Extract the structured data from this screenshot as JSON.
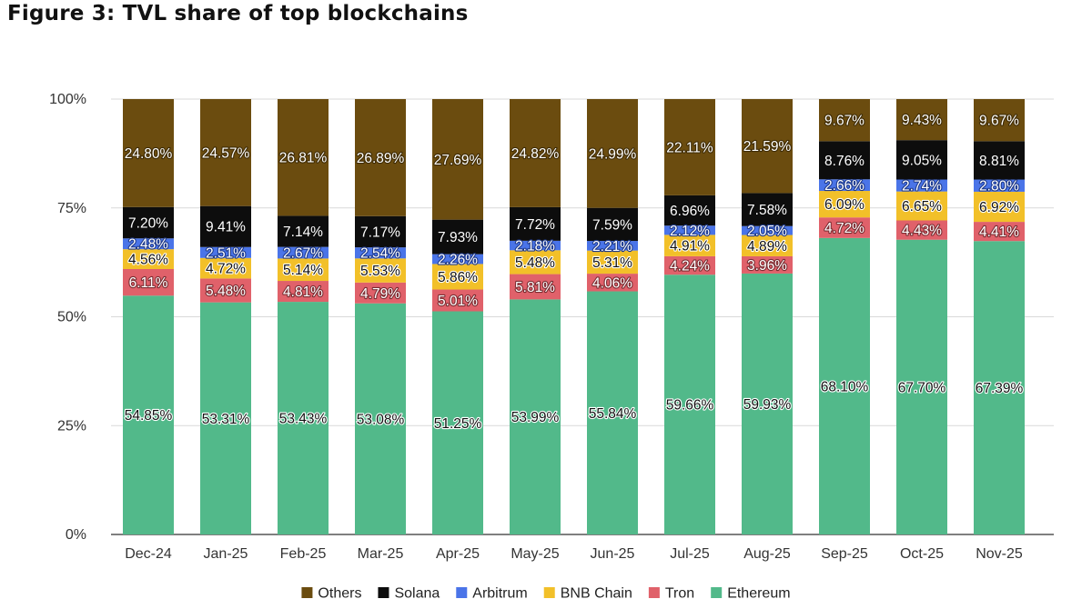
{
  "chart_data": {
    "type": "stacked-bar",
    "title": "Figure 3: TVL share of top blockchains",
    "xlabel": "",
    "ylabel": "",
    "ylim": [
      0,
      100
    ],
    "yticks": [
      "0%",
      "25%",
      "50%",
      "75%",
      "100%"
    ],
    "grid": true,
    "legend_position": "bottom",
    "categories": [
      "Dec-24",
      "Jan-25",
      "Feb-25",
      "Mar-25",
      "Apr-25",
      "May-25",
      "Jun-25",
      "Jul-25",
      "Aug-25",
      "Sep-25",
      "Oct-25",
      "Nov-25"
    ],
    "series": [
      {
        "name": "Ethereum",
        "color": "#52b98a",
        "label_color": "#111111",
        "halo": "#ffffff",
        "values": [
          54.85,
          53.31,
          53.43,
          53.08,
          51.25,
          53.99,
          55.84,
          59.66,
          59.93,
          68.1,
          67.7,
          67.39
        ]
      },
      {
        "name": "Tron",
        "color": "#e0616a",
        "label_color": "#ffffff",
        "halo": "#7a2d32",
        "values": [
          6.11,
          5.48,
          4.81,
          4.79,
          5.01,
          5.81,
          4.06,
          4.24,
          3.96,
          4.72,
          4.43,
          4.41
        ]
      },
      {
        "name": "BNB Chain",
        "color": "#f2c029",
        "label_color": "#111111",
        "halo": "#ffffff",
        "values": [
          4.56,
          4.72,
          5.14,
          5.53,
          5.86,
          5.48,
          5.31,
          4.91,
          4.89,
          6.09,
          6.65,
          6.92
        ]
      },
      {
        "name": "Arbitrum",
        "color": "#4a74e8",
        "label_color": "#ffffff",
        "halo": "#1f3a8a",
        "values": [
          2.48,
          2.51,
          2.67,
          2.54,
          2.26,
          2.18,
          2.21,
          2.12,
          2.05,
          2.66,
          2.74,
          2.8
        ]
      },
      {
        "name": "Solana",
        "color": "#0d0d0d",
        "label_color": "#ffffff",
        "halo": "#0d0d0d",
        "values": [
          7.2,
          9.41,
          7.14,
          7.17,
          7.93,
          7.72,
          7.59,
          6.96,
          7.58,
          8.76,
          9.05,
          8.81
        ]
      },
      {
        "name": "Others",
        "color": "#6b4c0f",
        "label_color": "#ffffff",
        "halo": "#3e2b05",
        "values": [
          24.8,
          24.57,
          26.81,
          26.89,
          27.69,
          24.82,
          24.99,
          22.11,
          21.59,
          9.67,
          9.43,
          9.67
        ]
      }
    ],
    "legend_order": [
      "Others",
      "Solana",
      "Arbitrum",
      "BNB Chain",
      "Tron",
      "Ethereum"
    ]
  }
}
